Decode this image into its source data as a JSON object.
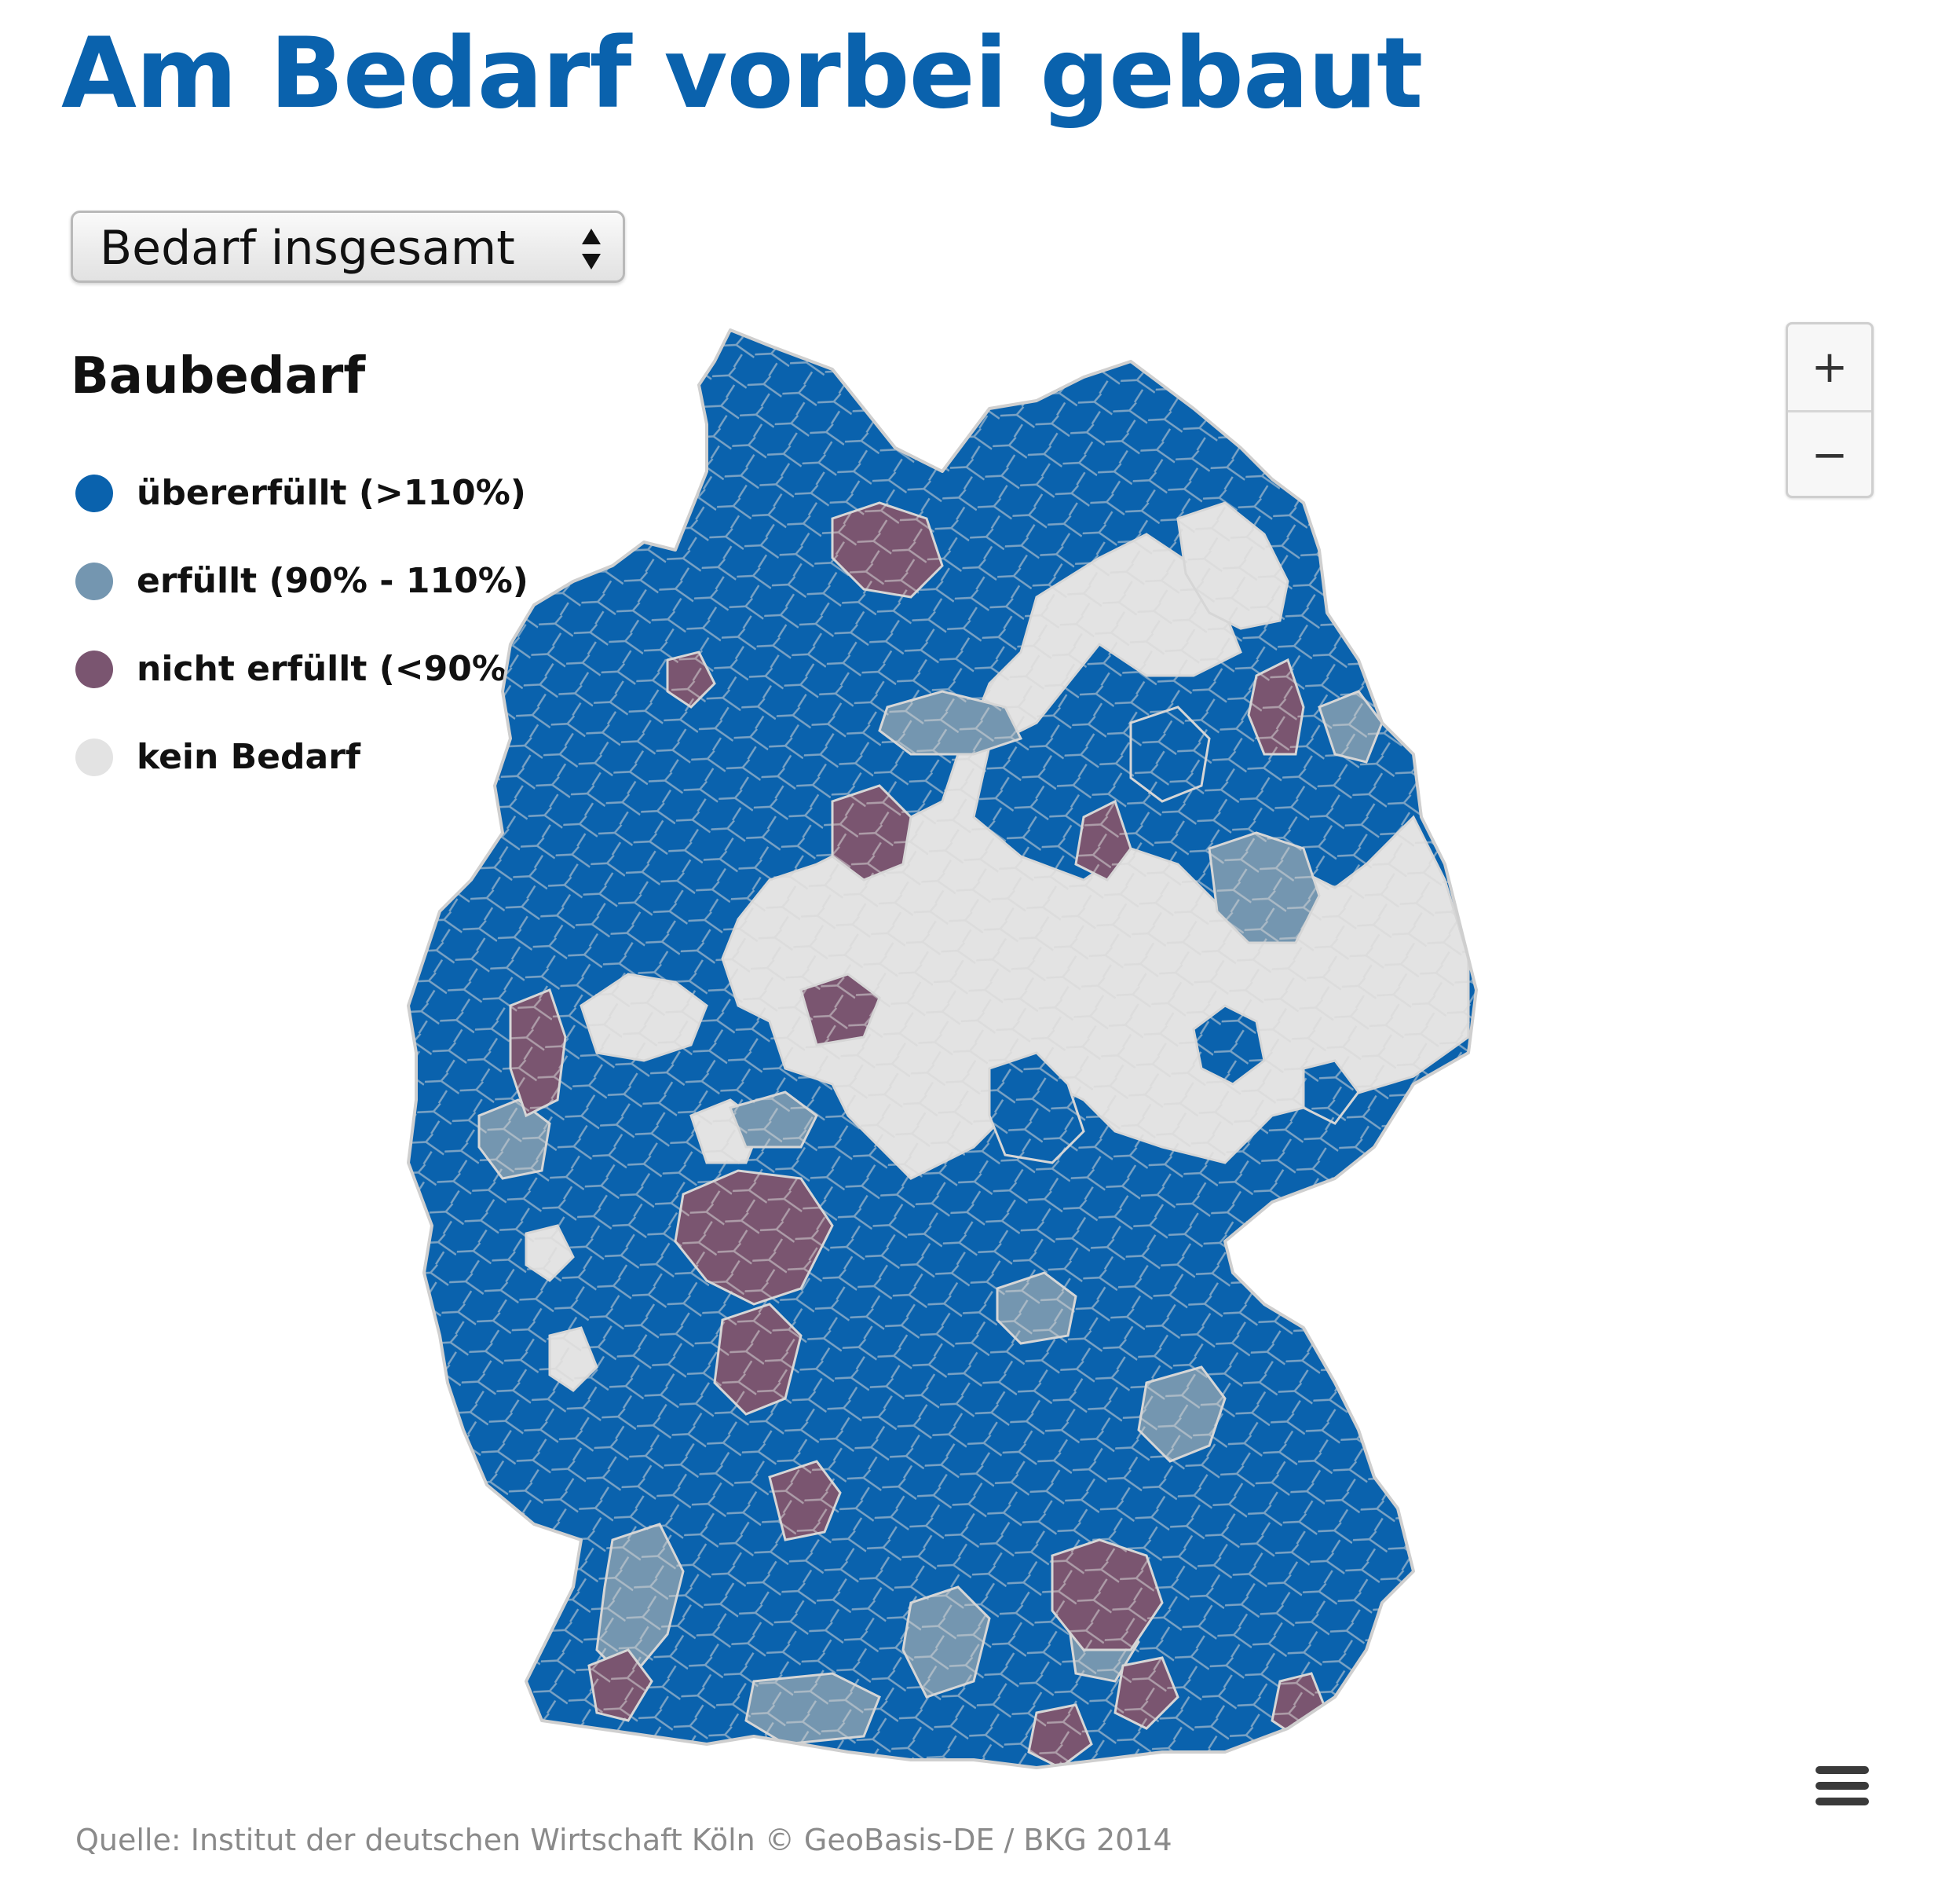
{
  "title": "Am Bedarf vorbei gebaut",
  "selector": {
    "value": "Bedarf insgesamt"
  },
  "legend": {
    "title": "Baubedarf",
    "items": [
      {
        "label": "übererfüllt (>110%)",
        "color": "#0a62ad"
      },
      {
        "label": "erfüllt (90% - 110%)",
        "color": "#7496b0"
      },
      {
        "label": "nicht erfüllt (<90%)",
        "color": "#7a5570"
      },
      {
        "label": "kein Bedarf",
        "color": "#e3e3e3"
      }
    ]
  },
  "zoom": {
    "in_label": "+",
    "out_label": "−"
  },
  "map": {
    "icons": [
      "zoom-in-icon",
      "zoom-out-icon",
      "hamburger-menu-icon"
    ],
    "region_border_color": "#d6d6d6"
  },
  "source": "Quelle: Institut der deutschen Wirtschaft Köln © GeoBasis-DE / BKG 2014"
}
